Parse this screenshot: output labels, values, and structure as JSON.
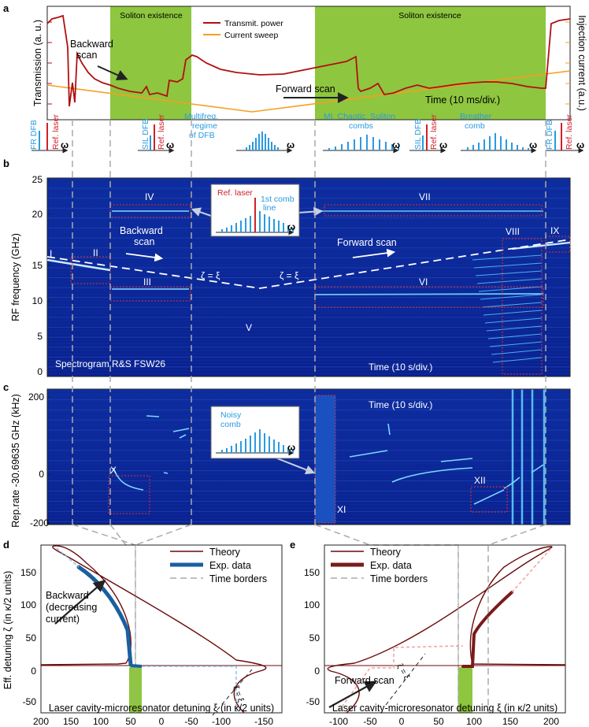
{
  "panel_a": {
    "letter": "a",
    "ylabel_left": "Transmission (a. u.)",
    "ylabel_right": "Injection current (a.u.)",
    "region1": "Soliton existence",
    "region2": "Soliton existence",
    "legend": [
      "Transmit. power",
      "Current sweep"
    ],
    "backward": [
      "Backward",
      "scan"
    ],
    "forward": "Forward scan",
    "time": "Time (10 ms/div.)",
    "colors": {
      "power": "#b01010",
      "current": "#f5a020",
      "region": "#8ec63f"
    }
  },
  "spectra": {
    "fr_dfb": "FR DFB",
    "ref_laser": "Ref. laser",
    "omega": "ω",
    "sil_dfb": "SIL DFB",
    "multifreq": [
      "Multifreq.",
      "regime",
      "of DFB"
    ],
    "mi_combs": [
      "MI, Chaotic, Soliton",
      "combs"
    ],
    "breather": [
      "Breather",
      "comb"
    ]
  },
  "panel_b": {
    "letter": "b",
    "ylabel": "RF frequency (GHz)",
    "yticks": [
      "0",
      "5",
      "10",
      "15",
      "20",
      "25"
    ],
    "roman": [
      "I",
      "II",
      "III",
      "IV",
      "V",
      "VI",
      "VII",
      "VIII",
      "IX"
    ],
    "backward": [
      "Backward",
      "scan"
    ],
    "forward": "Forward scan",
    "zeta": "ζ = ξ",
    "inset_ref": "Ref. laser",
    "inset_comb": [
      "1st comb",
      "line"
    ],
    "spectrogram": "Spectrogram R&S FSW26",
    "time": "Time (10 s/div.)"
  },
  "panel_c": {
    "letter": "c",
    "ylabel": "Rep.rate -30.69635 GHz (kHz)",
    "yticks": [
      "200",
      "0",
      "-200"
    ],
    "time": "Time (10 s/div.)",
    "noisy": [
      "Noisy",
      "comb"
    ],
    "roman": [
      "X",
      "XI",
      "XII"
    ]
  },
  "panel_d": {
    "letter": "d",
    "ylabel": "Eff. detuning ζ (in κ/2 units)",
    "xlabel": "Laser cavity-microresonator detuning ξ (in κ/2 units)",
    "yticks": [
      "-50",
      "0",
      "50",
      "100",
      "150"
    ],
    "xticks": [
      "200",
      "150",
      "100",
      "50",
      "0",
      "-50",
      "-100",
      "-150"
    ],
    "legend": [
      "Theory",
      "Exp. data",
      "Time borders"
    ],
    "annot": [
      "Backward",
      "(decreasing",
      "current)"
    ],
    "zeta": "ζ = ξ"
  },
  "panel_e": {
    "letter": "e",
    "yticks": [
      "-50",
      "0",
      "50",
      "100",
      "150"
    ],
    "xticks": [
      "-100",
      "-50",
      "0",
      "50",
      "100",
      "150",
      "200"
    ],
    "xlabel": "Laser cavity-microresonator detuning ξ (in κ/2 units)",
    "legend": [
      "Theory",
      "Exp. data",
      "Time borders"
    ],
    "annot": "Forward scan",
    "zeta": "ζ = ξ"
  }
}
